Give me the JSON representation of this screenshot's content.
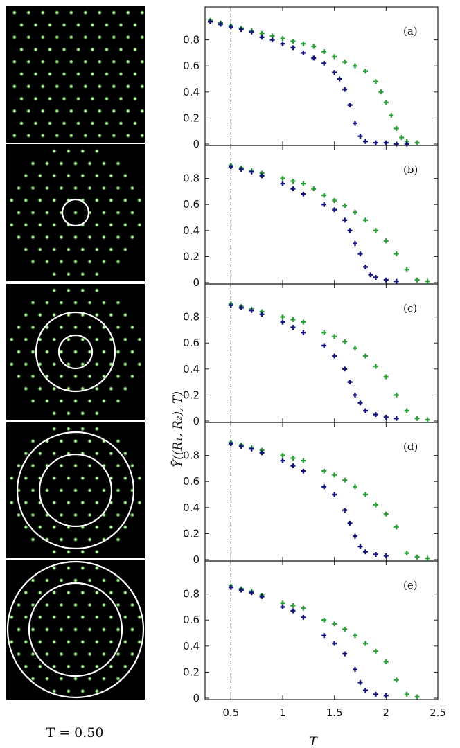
{
  "caption": "T = 0.50",
  "chart_data": {
    "type": "scatter",
    "xlabel": "T",
    "ylabel": "Ῡ((R₁, R₂), T)",
    "xlim": [
      0.25,
      2.5
    ],
    "ylim": [
      0,
      1.0
    ],
    "xticks": [
      "0.5",
      "1",
      "1.5",
      "2",
      "2.5"
    ],
    "yticks": [
      "0",
      "0.2",
      "0.4",
      "0.6",
      "0.8"
    ],
    "reference_line_x": 0.5,
    "series_colors": {
      "green": "#2e9e3a",
      "navy": "#14147a"
    },
    "panels": [
      {
        "label": "(a)",
        "green": [
          [
            0.3,
            0.95
          ],
          [
            0.4,
            0.93
          ],
          [
            0.5,
            0.91
          ],
          [
            0.6,
            0.89
          ],
          [
            0.7,
            0.87
          ],
          [
            0.8,
            0.85
          ],
          [
            0.9,
            0.83
          ],
          [
            1.0,
            0.81
          ],
          [
            1.1,
            0.79
          ],
          [
            1.2,
            0.77
          ],
          [
            1.3,
            0.75
          ],
          [
            1.4,
            0.71
          ],
          [
            1.5,
            0.67
          ],
          [
            1.6,
            0.63
          ],
          [
            1.7,
            0.6
          ],
          [
            1.8,
            0.56
          ],
          [
            1.9,
            0.48
          ],
          [
            1.95,
            0.4
          ],
          [
            2.0,
            0.32
          ],
          [
            2.05,
            0.22
          ],
          [
            2.1,
            0.12
          ],
          [
            2.15,
            0.05
          ],
          [
            2.2,
            0.02
          ],
          [
            2.3,
            0.01
          ]
        ],
        "navy": [
          [
            0.3,
            0.94
          ],
          [
            0.4,
            0.92
          ],
          [
            0.5,
            0.9
          ],
          [
            0.6,
            0.88
          ],
          [
            0.7,
            0.86
          ],
          [
            0.8,
            0.82
          ],
          [
            0.9,
            0.8
          ],
          [
            1.0,
            0.77
          ],
          [
            1.1,
            0.74
          ],
          [
            1.2,
            0.7
          ],
          [
            1.3,
            0.66
          ],
          [
            1.4,
            0.62
          ],
          [
            1.5,
            0.55
          ],
          [
            1.55,
            0.5
          ],
          [
            1.6,
            0.42
          ],
          [
            1.65,
            0.3
          ],
          [
            1.7,
            0.16
          ],
          [
            1.75,
            0.06
          ],
          [
            1.8,
            0.02
          ],
          [
            1.9,
            0.01
          ],
          [
            2.0,
            0.01
          ],
          [
            2.1,
            0.0
          ],
          [
            2.2,
            0.0
          ]
        ]
      },
      {
        "label": "(b)",
        "green": [
          [
            0.5,
            0.9
          ],
          [
            0.6,
            0.88
          ],
          [
            0.7,
            0.86
          ],
          [
            0.8,
            0.84
          ],
          [
            1.0,
            0.8
          ],
          [
            1.1,
            0.78
          ],
          [
            1.2,
            0.76
          ],
          [
            1.3,
            0.72
          ],
          [
            1.4,
            0.67
          ],
          [
            1.5,
            0.63
          ],
          [
            1.6,
            0.59
          ],
          [
            1.7,
            0.54
          ],
          [
            1.8,
            0.48
          ],
          [
            1.9,
            0.4
          ],
          [
            2.0,
            0.32
          ],
          [
            2.1,
            0.22
          ],
          [
            2.2,
            0.1
          ],
          [
            2.3,
            0.02
          ],
          [
            2.4,
            0.01
          ]
        ],
        "navy": [
          [
            0.5,
            0.89
          ],
          [
            0.6,
            0.87
          ],
          [
            0.7,
            0.85
          ],
          [
            0.8,
            0.82
          ],
          [
            1.0,
            0.76
          ],
          [
            1.1,
            0.72
          ],
          [
            1.2,
            0.68
          ],
          [
            1.4,
            0.6
          ],
          [
            1.5,
            0.56
          ],
          [
            1.6,
            0.48
          ],
          [
            1.65,
            0.4
          ],
          [
            1.7,
            0.3
          ],
          [
            1.75,
            0.22
          ],
          [
            1.8,
            0.12
          ],
          [
            1.85,
            0.06
          ],
          [
            1.9,
            0.04
          ],
          [
            2.0,
            0.02
          ],
          [
            2.1,
            0.01
          ]
        ]
      },
      {
        "label": "(c)",
        "green": [
          [
            0.5,
            0.9
          ],
          [
            0.6,
            0.88
          ],
          [
            0.7,
            0.86
          ],
          [
            0.8,
            0.84
          ],
          [
            1.0,
            0.8
          ],
          [
            1.1,
            0.78
          ],
          [
            1.2,
            0.76
          ],
          [
            1.4,
            0.68
          ],
          [
            1.5,
            0.65
          ],
          [
            1.6,
            0.61
          ],
          [
            1.7,
            0.56
          ],
          [
            1.8,
            0.5
          ],
          [
            1.9,
            0.42
          ],
          [
            2.0,
            0.34
          ],
          [
            2.1,
            0.2
          ],
          [
            2.2,
            0.08
          ],
          [
            2.3,
            0.02
          ],
          [
            2.4,
            0.01
          ]
        ],
        "navy": [
          [
            0.5,
            0.89
          ],
          [
            0.6,
            0.87
          ],
          [
            0.7,
            0.85
          ],
          [
            0.8,
            0.82
          ],
          [
            1.0,
            0.76
          ],
          [
            1.1,
            0.72
          ],
          [
            1.2,
            0.68
          ],
          [
            1.4,
            0.58
          ],
          [
            1.5,
            0.5
          ],
          [
            1.6,
            0.4
          ],
          [
            1.65,
            0.3
          ],
          [
            1.7,
            0.2
          ],
          [
            1.75,
            0.14
          ],
          [
            1.8,
            0.08
          ],
          [
            1.9,
            0.05
          ],
          [
            2.0,
            0.03
          ],
          [
            2.1,
            0.02
          ]
        ]
      },
      {
        "label": "(d)",
        "green": [
          [
            0.5,
            0.9
          ],
          [
            0.6,
            0.88
          ],
          [
            0.7,
            0.86
          ],
          [
            0.8,
            0.84
          ],
          [
            1.0,
            0.8
          ],
          [
            1.1,
            0.78
          ],
          [
            1.2,
            0.76
          ],
          [
            1.4,
            0.68
          ],
          [
            1.5,
            0.65
          ],
          [
            1.6,
            0.61
          ],
          [
            1.7,
            0.56
          ],
          [
            1.8,
            0.5
          ],
          [
            1.9,
            0.42
          ],
          [
            2.0,
            0.35
          ],
          [
            2.1,
            0.25
          ],
          [
            2.2,
            0.05
          ],
          [
            2.3,
            0.02
          ],
          [
            2.4,
            0.01
          ]
        ],
        "navy": [
          [
            0.5,
            0.89
          ],
          [
            0.6,
            0.87
          ],
          [
            0.7,
            0.85
          ],
          [
            0.8,
            0.82
          ],
          [
            1.0,
            0.76
          ],
          [
            1.1,
            0.72
          ],
          [
            1.2,
            0.68
          ],
          [
            1.4,
            0.56
          ],
          [
            1.5,
            0.5
          ],
          [
            1.6,
            0.38
          ],
          [
            1.65,
            0.28
          ],
          [
            1.7,
            0.18
          ],
          [
            1.75,
            0.1
          ],
          [
            1.8,
            0.06
          ],
          [
            1.9,
            0.04
          ],
          [
            2.0,
            0.03
          ]
        ]
      },
      {
        "label": "(e)",
        "green": [
          [
            0.5,
            0.86
          ],
          [
            0.6,
            0.84
          ],
          [
            0.7,
            0.82
          ],
          [
            0.8,
            0.79
          ],
          [
            1.0,
            0.73
          ],
          [
            1.1,
            0.71
          ],
          [
            1.2,
            0.69
          ],
          [
            1.4,
            0.6
          ],
          [
            1.5,
            0.57
          ],
          [
            1.6,
            0.53
          ],
          [
            1.7,
            0.48
          ],
          [
            1.8,
            0.42
          ],
          [
            1.9,
            0.36
          ],
          [
            2.0,
            0.28
          ],
          [
            2.1,
            0.14
          ],
          [
            2.2,
            0.03
          ],
          [
            2.3,
            0.01
          ]
        ],
        "navy": [
          [
            0.5,
            0.85
          ],
          [
            0.6,
            0.83
          ],
          [
            0.7,
            0.81
          ],
          [
            0.8,
            0.78
          ],
          [
            1.0,
            0.7
          ],
          [
            1.1,
            0.67
          ],
          [
            1.2,
            0.62
          ],
          [
            1.4,
            0.48
          ],
          [
            1.5,
            0.42
          ],
          [
            1.6,
            0.34
          ],
          [
            1.7,
            0.22
          ],
          [
            1.75,
            0.12
          ],
          [
            1.8,
            0.06
          ],
          [
            1.9,
            0.03
          ],
          [
            2.0,
            0.02
          ]
        ]
      }
    ]
  },
  "snapshots": [
    {
      "rings": 0
    },
    {
      "rings": 1
    },
    {
      "rings": 2
    },
    {
      "rings": 2
    },
    {
      "rings": 2
    }
  ]
}
